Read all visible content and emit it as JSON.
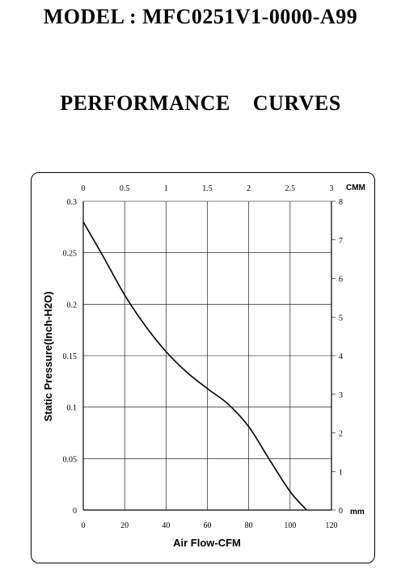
{
  "header": {
    "model": "MODEL : MFC0251V1-0000-A99",
    "subtitle": "PERFORMANCE    CURVES"
  },
  "chart_data": {
    "type": "line",
    "xlabel": "Air Flow-CFM",
    "ylabel": "Static Pressure(Inch-H2O)",
    "xlim": [
      0,
      120
    ],
    "ylim": [
      0,
      0.3
    ],
    "x_ticks": [
      "0",
      "20",
      "40",
      "60",
      "80",
      "100",
      "120"
    ],
    "y_ticks": [
      "0",
      "0.05",
      "0.1",
      "0.15",
      "0.2",
      "0.25",
      "0.3"
    ],
    "x2_unit": "CMM",
    "x2lim": [
      0,
      3
    ],
    "x2_ticks": [
      "0",
      "0.5",
      "1",
      "1.5",
      "2",
      "2.5",
      "3"
    ],
    "y2_unit": "mm",
    "y2lim": [
      0,
      8
    ],
    "y2_ticks": [
      "0",
      "1",
      "2",
      "3",
      "4",
      "5",
      "6",
      "7",
      "8"
    ],
    "grid": true,
    "series": [
      {
        "color": "#000000",
        "x": [
          0,
          10,
          20,
          30,
          40,
          50,
          60,
          70,
          80,
          90,
          100,
          108
        ],
        "y": [
          0.28,
          0.245,
          0.209,
          0.179,
          0.154,
          0.134,
          0.118,
          0.103,
          0.081,
          0.049,
          0.018,
          0
        ]
      }
    ]
  }
}
